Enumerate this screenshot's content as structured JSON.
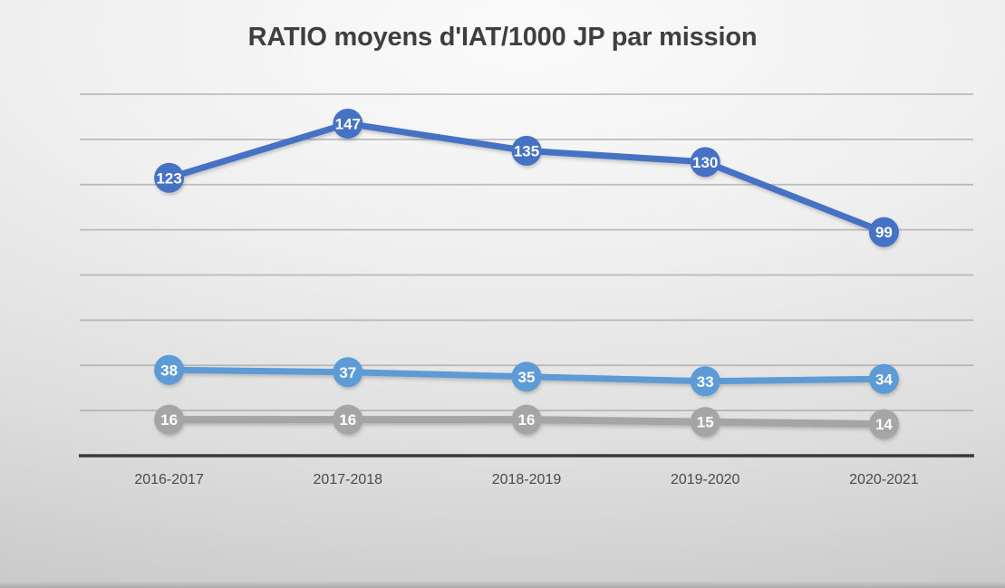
{
  "chart_data": {
    "type": "line",
    "title": "RATIO moyens d'IAT/1000 JP par mission",
    "categories": [
      "2016-2017",
      "2017-2018",
      "2018-2019",
      "2019-2020",
      "2020-2021"
    ],
    "series": [
      {
        "color": "#4472C4",
        "values": [
          123,
          147,
          135,
          130,
          99
        ]
      },
      {
        "color": "#5B9BD5",
        "values": [
          38,
          37,
          35,
          33,
          34
        ]
      },
      {
        "color": "#A5A5A5",
        "values": [
          16,
          16,
          16,
          15,
          14
        ]
      }
    ],
    "xlabel": "",
    "ylabel": "",
    "ylim": [
      0,
      160
    ],
    "grid_step": 20,
    "grid": "on",
    "legend": "none",
    "data_labels": "inside-marker",
    "data_label_color": "#ffffff"
  },
  "styles": {
    "title_color": "#3f3f3f",
    "axis_label_color": "#4a4a4a",
    "gridline_color": "#8f8f8f",
    "axis_line_color": "#3a3a3a"
  }
}
